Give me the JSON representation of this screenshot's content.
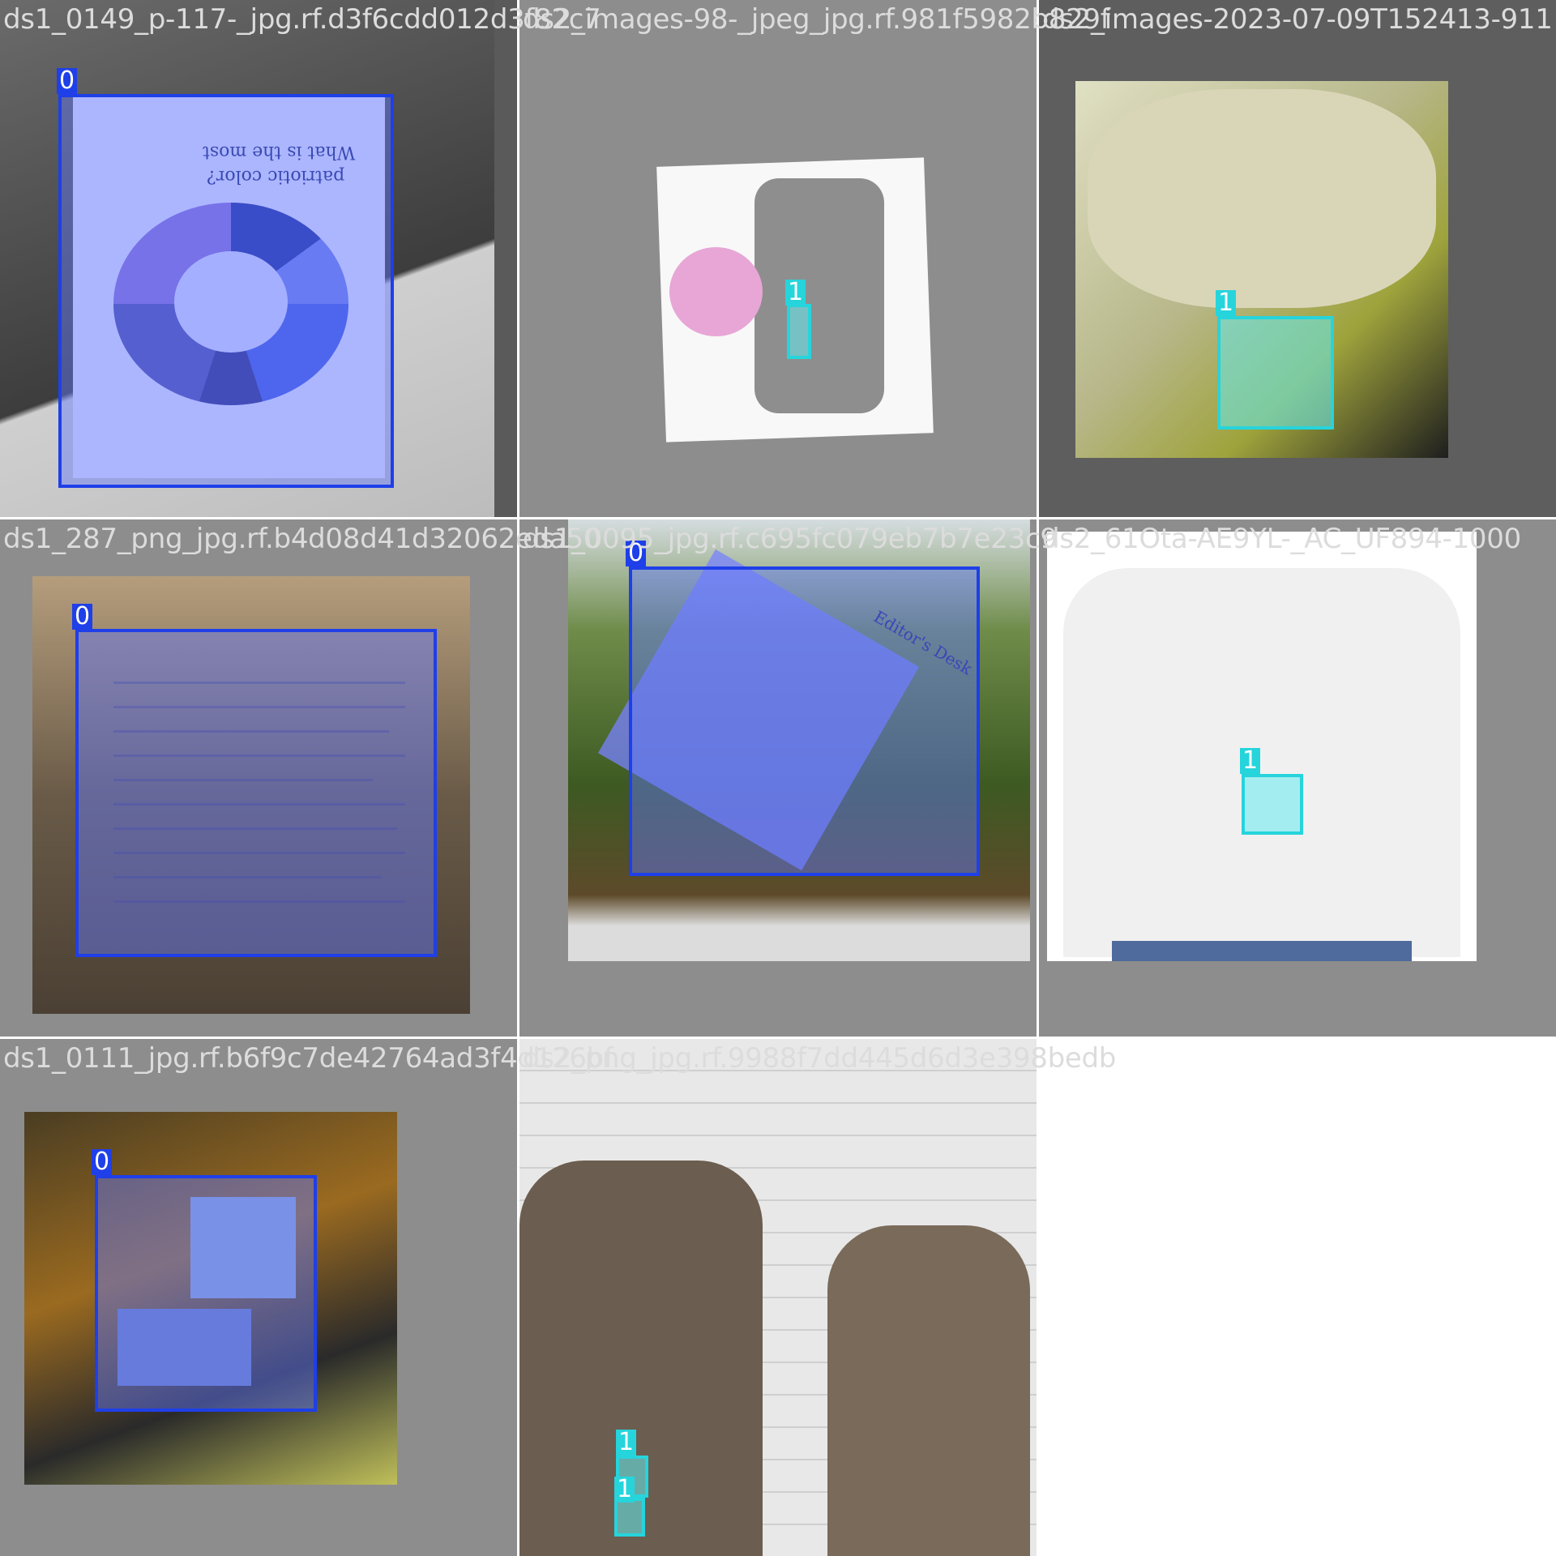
{
  "mosaic": {
    "tiles": [
      {
        "label": "ds1_0149_p-117-_jpg.rf.d3f6cdd012d3f82c7",
        "boxes": [
          {
            "class": "0"
          }
        ],
        "doc_text": {
          "title_line1": "What is the most",
          "title_line2": "patriotic color?"
        }
      },
      {
        "label": "ds2_images-98-_jpeg_jpg.rf.981f5982b829f",
        "boxes": [
          {
            "class": "1"
          }
        ]
      },
      {
        "label": "ds2_images-2023-07-09T152413-911",
        "boxes": [
          {
            "class": "1"
          }
        ]
      },
      {
        "label": "ds1_287_png_jpg.rf.b4d08d41d32062eda50",
        "boxes": [
          {
            "class": "0"
          }
        ]
      },
      {
        "label": "ds1_0095_jpg.rf.c695fc079eb7b7e23c9",
        "boxes": [
          {
            "class": "0"
          }
        ],
        "doc_text": {
          "heading": "Editor's Desk"
        }
      },
      {
        "label": "ds2_61Ota-AE9YL-_AC_UF894-1000",
        "boxes": [
          {
            "class": "1"
          }
        ]
      },
      {
        "label": "ds1_0111_jpg.rf.b6f9c7de42764ad3f4d126bf",
        "boxes": [
          {
            "class": "0"
          }
        ]
      },
      {
        "label": "ds2_png_jpg.rf.9988f7dd445d6d3e398bedb",
        "boxes": [
          {
            "class": "1"
          },
          {
            "class": "1"
          }
        ]
      }
    ]
  },
  "colors": {
    "class_0": "#1f3fe8",
    "class_1": "#26d4dc",
    "tile_bg": "#8d8d8d"
  }
}
